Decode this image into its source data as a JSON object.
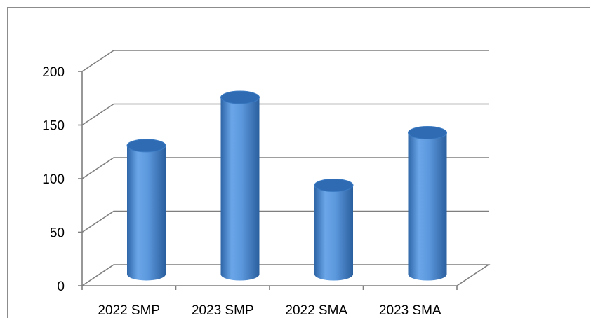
{
  "chart_data": {
    "type": "bar",
    "style": "3d-cylinder",
    "categories": [
      "2022 SMP",
      "2023 SMP",
      "2022 SMA",
      "2023 SMA"
    ],
    "values": [
      120,
      165,
      83,
      132
    ],
    "ylim": [
      0,
      200
    ],
    "yticks": [
      0,
      50,
      100,
      150,
      200
    ],
    "ytick_labels": [
      "0",
      "50",
      "100",
      "150",
      "200"
    ],
    "grid": true,
    "legend": "none",
    "colors": {
      "bar": "#4f8fd6",
      "bar_dark": "#2e66a8",
      "bar_light": "#8cbcf0",
      "top": "#2f6bb3",
      "grid": "#7f7f7f"
    }
  }
}
